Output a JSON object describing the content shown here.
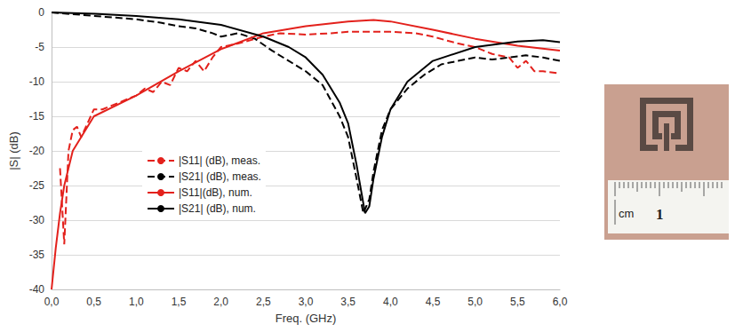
{
  "chart_data": {
    "type": "line",
    "x_label": "Freq. (GHz)",
    "y_label": "|S| (dB)",
    "xlim": [
      0,
      6
    ],
    "xticks": [
      {
        "value": 0,
        "label": "0,0"
      },
      {
        "value": 0.5,
        "label": "0,5"
      },
      {
        "value": 1,
        "label": "1,0"
      },
      {
        "value": 1.5,
        "label": "1,5"
      },
      {
        "value": 2,
        "label": "2,0"
      },
      {
        "value": 2.5,
        "label": "2,5"
      },
      {
        "value": 3,
        "label": "3,0"
      },
      {
        "value": 3.5,
        "label": "3,5"
      },
      {
        "value": 4,
        "label": "4,0"
      },
      {
        "value": 4.5,
        "label": "4,5"
      },
      {
        "value": 5,
        "label": "5,0"
      },
      {
        "value": 5.5,
        "label": "5,5"
      },
      {
        "value": 6,
        "label": "6,0"
      }
    ],
    "ylim": [
      -40,
      0
    ],
    "yticks": [
      -40,
      -35,
      -30,
      -25,
      -20,
      -15,
      -10,
      -5,
      0
    ],
    "grid": true,
    "legend": "left",
    "annotations": [
      "cm",
      "1"
    ],
    "series": [
      {
        "name": "|S11| (dB), meas.",
        "color": "#e3211c",
        "line_style": "dashed",
        "x": [
          0.1,
          0.15,
          0.2,
          0.25,
          0.3,
          0.35,
          0.5,
          0.6,
          0.8,
          1.0,
          1.1,
          1.2,
          1.3,
          1.4,
          1.5,
          1.6,
          1.7,
          1.8,
          1.9,
          2.0,
          2.2,
          2.5,
          2.7,
          3.0,
          3.3,
          3.5,
          3.8,
          4.0,
          4.3,
          4.5,
          4.8,
          5.0,
          5.2,
          5.4,
          5.5,
          5.6,
          5.7,
          5.8,
          6.0
        ],
        "values": [
          -22.5,
          -33.5,
          -20,
          -17,
          -16.5,
          -18,
          -14,
          -14,
          -13,
          -12,
          -11,
          -11.5,
          -10,
          -10.5,
          -8,
          -8.5,
          -7,
          -8.5,
          -6.5,
          -5,
          -4.5,
          -3.5,
          -3,
          -3.2,
          -3,
          -2.8,
          -2.8,
          -2.8,
          -3,
          -3.5,
          -4.5,
          -5,
          -6,
          -6.5,
          -8,
          -7,
          -8.5,
          -8.5,
          -8.8
        ]
      },
      {
        "name": "|S21| (dB), meas.",
        "color": "#000000",
        "line_style": "dashed",
        "x": [
          0,
          0.5,
          1.0,
          1.3,
          1.5,
          1.7,
          1.9,
          2.0,
          2.2,
          2.4,
          2.6,
          2.8,
          3.0,
          3.2,
          3.4,
          3.5,
          3.6,
          3.68,
          3.75,
          3.8,
          3.9,
          4.0,
          4.2,
          4.4,
          4.6,
          4.8,
          5.0,
          5.2,
          5.4,
          5.6,
          5.8,
          6.0
        ],
        "values": [
          0,
          -0.5,
          -1,
          -1.5,
          -2,
          -2.3,
          -3,
          -3.5,
          -3,
          -3.8,
          -5.5,
          -7,
          -8.5,
          -10.5,
          -15,
          -18,
          -24,
          -29,
          -27,
          -23,
          -17,
          -14,
          -11,
          -9,
          -7.5,
          -7,
          -6.5,
          -6.8,
          -6.5,
          -6.2,
          -6.5,
          -7
        ]
      },
      {
        "name": "|S11|(dB), num.",
        "color": "#e3211c",
        "line_style": "solid",
        "x": [
          0,
          0.05,
          0.1,
          0.15,
          0.25,
          0.5,
          1.0,
          1.5,
          2.0,
          2.5,
          3.0,
          3.5,
          3.8,
          4.0,
          4.5,
          5.0,
          5.5,
          6.0
        ],
        "values": [
          -40,
          -34,
          -29,
          -25,
          -20,
          -15,
          -12,
          -8.5,
          -5.3,
          -3,
          -2,
          -1.3,
          -1.1,
          -1.3,
          -2.5,
          -3.8,
          -4.8,
          -5.5
        ]
      },
      {
        "name": "|S21| (dB), num.",
        "color": "#000000",
        "line_style": "solid",
        "x": [
          0,
          0.5,
          1.0,
          1.5,
          2.0,
          2.5,
          2.8,
          3.0,
          3.2,
          3.4,
          3.5,
          3.6,
          3.7,
          3.75,
          3.8,
          3.9,
          4.0,
          4.2,
          4.5,
          5.0,
          5.5,
          5.8,
          6.0
        ],
        "values": [
          0,
          -0.2,
          -0.5,
          -1,
          -1.8,
          -3.5,
          -5,
          -6.5,
          -9,
          -13,
          -16,
          -22,
          -29,
          -28,
          -24,
          -18,
          -14,
          -10,
          -7,
          -5,
          -4.2,
          -4,
          -4.3
        ]
      }
    ]
  }
}
